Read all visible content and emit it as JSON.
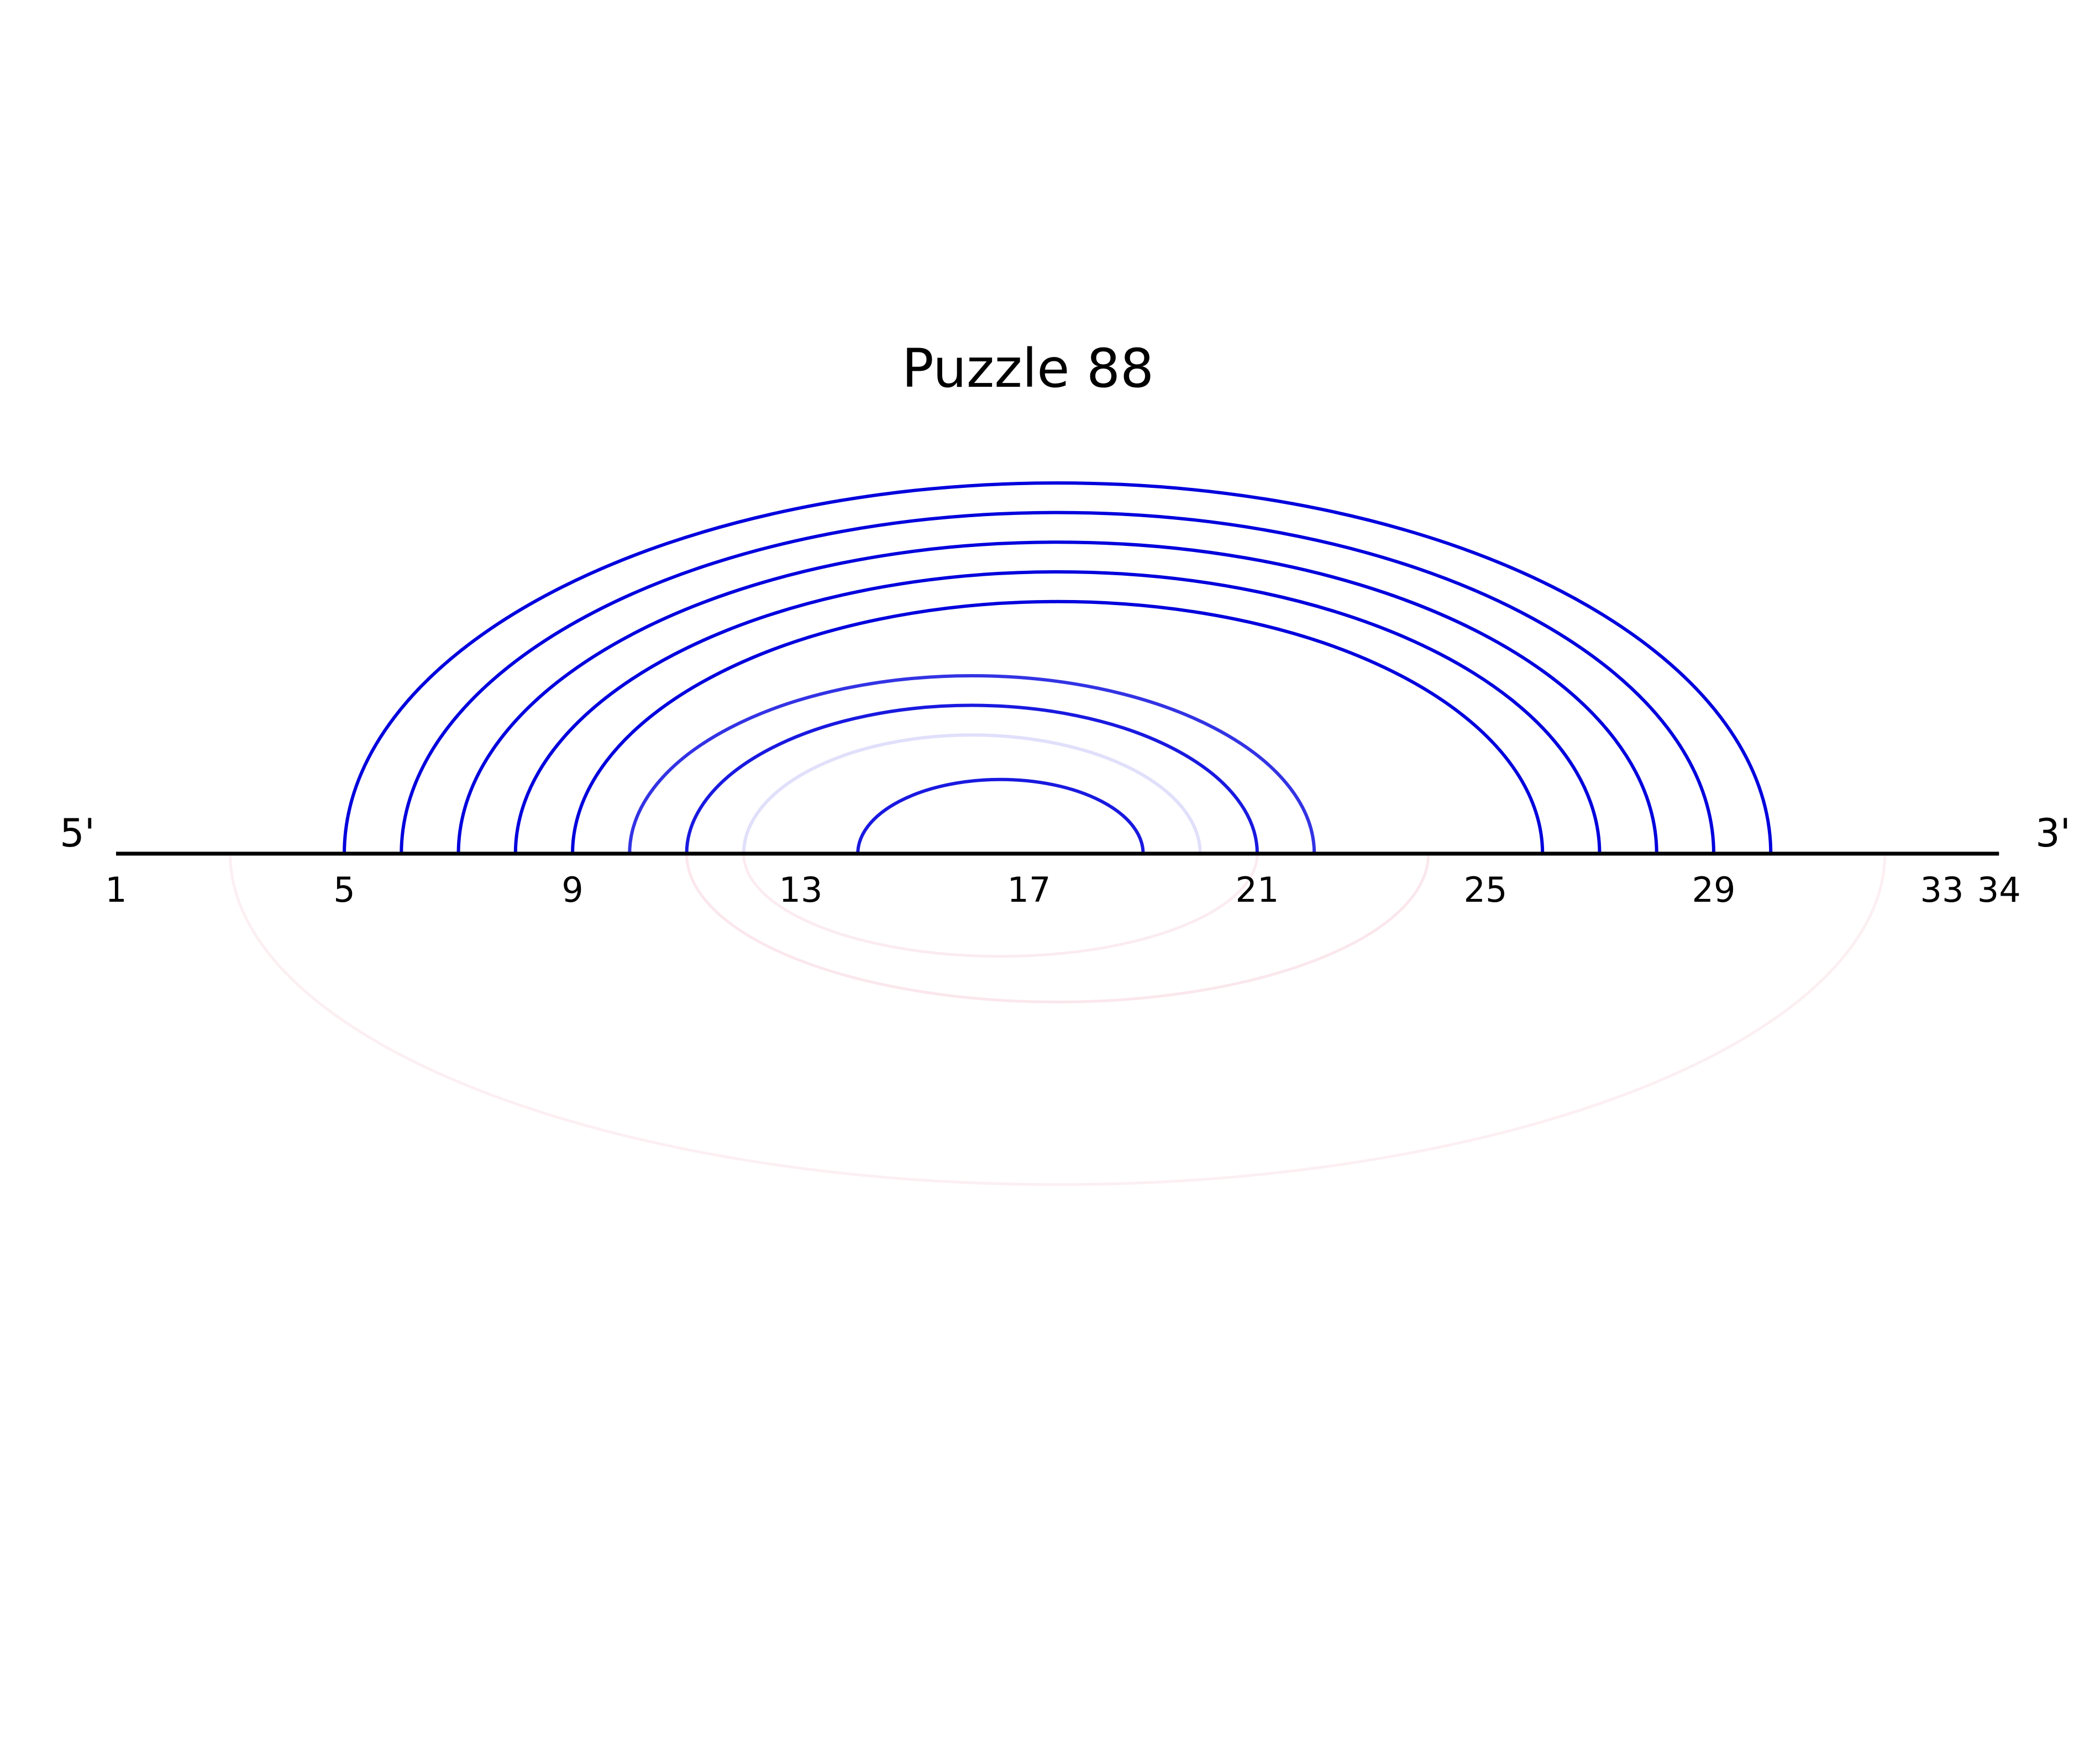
{
  "title": "Puzzle 88",
  "five_prime_label": "5'",
  "three_prime_label": "3'",
  "sequence_length": 34,
  "tick_labels": [
    "1",
    "5",
    "9",
    "13",
    "17",
    "21",
    "25",
    "29",
    "33",
    "34"
  ],
  "colors": {
    "backbone": "#000000",
    "upper_arc": "#0000dd",
    "faint_upper_arc": "#d8d8f8",
    "lower_arc_faint": "#fdf0f4"
  },
  "upper_arcs": [
    {
      "i": 5,
      "j": 30,
      "alpha": 1.0
    },
    {
      "i": 6,
      "j": 29,
      "alpha": 1.0
    },
    {
      "i": 7,
      "j": 28,
      "alpha": 1.0
    },
    {
      "i": 8,
      "j": 27,
      "alpha": 1.0
    },
    {
      "i": 9,
      "j": 26,
      "alpha": 1.0
    },
    {
      "i": 10,
      "j": 22,
      "alpha": 0.8
    },
    {
      "i": 11,
      "j": 21,
      "alpha": 0.9
    },
    {
      "i": 12,
      "j": 20,
      "alpha": 0.12
    },
    {
      "i": 14,
      "j": 19,
      "alpha": 0.9
    }
  ],
  "lower_arcs": [
    {
      "i": 3,
      "j": 32,
      "alpha": 0.1
    },
    {
      "i": 11,
      "j": 24,
      "alpha": 0.15
    },
    {
      "i": 12,
      "j": 21,
      "alpha": 0.12
    }
  ]
}
